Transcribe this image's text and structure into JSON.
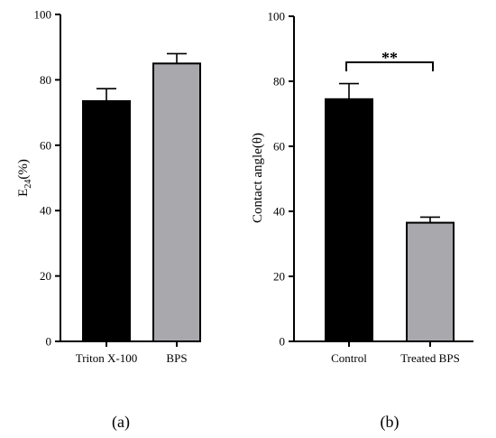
{
  "chart_data": [
    {
      "type": "bar",
      "panel_label": "(a)",
      "categories": [
        "Triton X-100",
        "BPS"
      ],
      "values": [
        73.5,
        85.0
      ],
      "errors": [
        3.8,
        3.0
      ],
      "colors": [
        "#000000",
        "#a9a8ad"
      ],
      "ylabel_main": "E",
      "ylabel_sub": "24",
      "ylabel_rest": "(%)",
      "ylim": [
        0,
        100
      ],
      "yticks": [
        "0",
        "20",
        "40",
        "60",
        "80",
        "100"
      ],
      "grid": false
    },
    {
      "type": "bar",
      "panel_label": "(b)",
      "categories": [
        "Control",
        "Treated BPS"
      ],
      "values": [
        74.5,
        36.5
      ],
      "errors": [
        4.8,
        1.7
      ],
      "colors": [
        "#000000",
        "#a9a8ad"
      ],
      "ylabel": "Contact angle(θ)",
      "ylim": [
        0,
        100
      ],
      "yticks": [
        "0",
        "20",
        "40",
        "60",
        "80",
        "100"
      ],
      "significance": "**",
      "grid": false
    }
  ]
}
